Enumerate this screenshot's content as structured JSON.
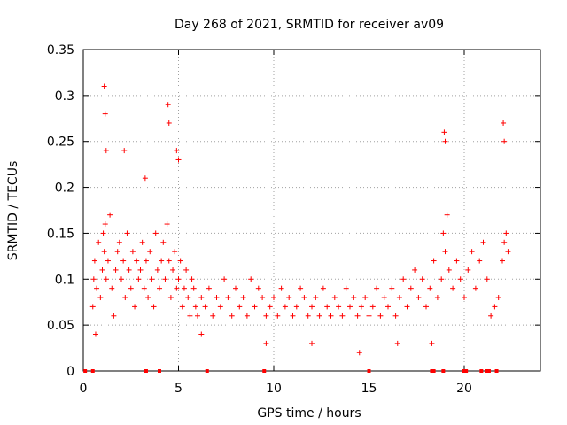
{
  "chart_data": {
    "type": "scatter",
    "title": "Day 268 of 2021, SRMTID for receiver av09",
    "xlabel": "GPS time / hours",
    "ylabel": "SRMTID / TECUs",
    "xlim": [
      0,
      24
    ],
    "ylim": [
      0,
      0.35
    ],
    "xticks": [
      "0",
      "5",
      "10",
      "15",
      "20"
    ],
    "xtick_values": [
      0,
      5,
      10,
      15,
      20
    ],
    "yticks": [
      "0",
      "0.05",
      "0.1",
      "0.15",
      "0.2",
      "0.25",
      "0.3",
      "0.35"
    ],
    "ytick_values": [
      0,
      0.05,
      0.1,
      0.15,
      0.2,
      0.25,
      0.3,
      0.35
    ],
    "grid": true,
    "marker": "+",
    "color": "#ff0000",
    "series": [
      {
        "name": "SRMTID",
        "x": [
          0.5,
          0.55,
          0.6,
          0.7,
          0.8,
          0.9,
          1.0,
          1.05,
          1.1,
          1.15,
          1.2,
          1.3,
          1.4,
          1.5,
          1.6,
          1.7,
          1.8,
          1.9,
          2.0,
          2.1,
          2.2,
          2.3,
          2.4,
          2.5,
          2.6,
          2.7,
          2.8,
          2.9,
          3.0,
          3.1,
          3.2,
          3.3,
          3.4,
          3.5,
          3.6,
          3.7,
          3.8,
          3.9,
          4.0,
          4.1,
          4.2,
          4.3,
          4.4,
          4.5,
          4.6,
          4.7,
          4.8,
          4.9,
          5.0,
          5.1,
          5.2,
          5.3,
          5.4,
          5.5,
          5.6,
          5.7,
          5.8,
          5.9,
          6.0,
          6.2,
          6.4,
          6.6,
          6.8,
          7.0,
          7.2,
          7.4,
          7.6,
          7.8,
          8.0,
          8.2,
          8.4,
          8.6,
          8.8,
          9.0,
          9.2,
          9.4,
          9.6,
          9.8,
          10.0,
          10.2,
          10.4,
          10.6,
          10.8,
          11.0,
          11.2,
          11.4,
          11.6,
          11.8,
          12.0,
          12.2,
          12.4,
          12.6,
          12.8,
          13.0,
          13.2,
          13.4,
          13.6,
          13.8,
          14.0,
          14.2,
          14.4,
          14.6,
          14.8,
          15.0,
          15.2,
          15.4,
          15.6,
          15.8,
          16.0,
          16.2,
          16.4,
          16.6,
          16.8,
          17.0,
          17.2,
          17.4,
          17.6,
          17.8,
          18.0,
          18.2,
          18.4,
          18.6,
          18.8,
          18.9,
          19.0,
          19.1,
          19.2,
          19.4,
          19.6,
          19.8,
          20.0,
          20.2,
          20.4,
          20.6,
          20.8,
          21.0,
          21.2,
          21.4,
          21.6,
          21.8,
          22.0,
          22.1,
          22.2,
          22.3,
          1.1,
          1.15,
          4.45,
          4.5,
          4.9,
          5.0,
          18.95,
          19.0,
          22.05,
          22.1,
          1.2,
          2.15,
          3.25,
          0.65,
          6.2,
          9.6,
          12.0,
          14.5,
          16.5,
          18.3
        ],
        "y": [
          0.07,
          0.1,
          0.12,
          0.09,
          0.14,
          0.08,
          0.11,
          0.15,
          0.13,
          0.16,
          0.1,
          0.12,
          0.17,
          0.09,
          0.06,
          0.11,
          0.13,
          0.14,
          0.1,
          0.12,
          0.08,
          0.15,
          0.11,
          0.09,
          0.13,
          0.07,
          0.12,
          0.1,
          0.11,
          0.14,
          0.09,
          0.12,
          0.08,
          0.13,
          0.1,
          0.07,
          0.15,
          0.11,
          0.09,
          0.12,
          0.14,
          0.1,
          0.16,
          0.12,
          0.08,
          0.11,
          0.13,
          0.09,
          0.1,
          0.12,
          0.07,
          0.09,
          0.11,
          0.08,
          0.06,
          0.1,
          0.09,
          0.07,
          0.06,
          0.08,
          0.07,
          0.09,
          0.06,
          0.08,
          0.07,
          0.1,
          0.08,
          0.06,
          0.09,
          0.07,
          0.08,
          0.06,
          0.1,
          0.07,
          0.09,
          0.08,
          0.06,
          0.07,
          0.08,
          0.06,
          0.09,
          0.07,
          0.08,
          0.06,
          0.07,
          0.09,
          0.08,
          0.06,
          0.07,
          0.08,
          0.06,
          0.09,
          0.07,
          0.06,
          0.08,
          0.07,
          0.06,
          0.09,
          0.07,
          0.08,
          0.06,
          0.07,
          0.08,
          0.06,
          0.07,
          0.09,
          0.06,
          0.08,
          0.07,
          0.09,
          0.06,
          0.08,
          0.1,
          0.07,
          0.09,
          0.11,
          0.08,
          0.1,
          0.07,
          0.09,
          0.12,
          0.08,
          0.1,
          0.15,
          0.13,
          0.17,
          0.11,
          0.09,
          0.12,
          0.1,
          0.08,
          0.11,
          0.13,
          0.09,
          0.12,
          0.14,
          0.1,
          0.06,
          0.07,
          0.08,
          0.12,
          0.14,
          0.15,
          0.13,
          0.31,
          0.28,
          0.29,
          0.27,
          0.24,
          0.23,
          0.26,
          0.25,
          0.27,
          0.25,
          0.24,
          0.24,
          0.21,
          0.04,
          0.04,
          0.03,
          0.03,
          0.02,
          0.03,
          0.03
        ]
      }
    ],
    "zero_marks_x": [
      0.1,
      0.5,
      3.3,
      4.0,
      6.5,
      9.5,
      15.0,
      18.3,
      18.4,
      18.9,
      20.0,
      20.1,
      20.9,
      21.2,
      21.3,
      21.7
    ]
  }
}
